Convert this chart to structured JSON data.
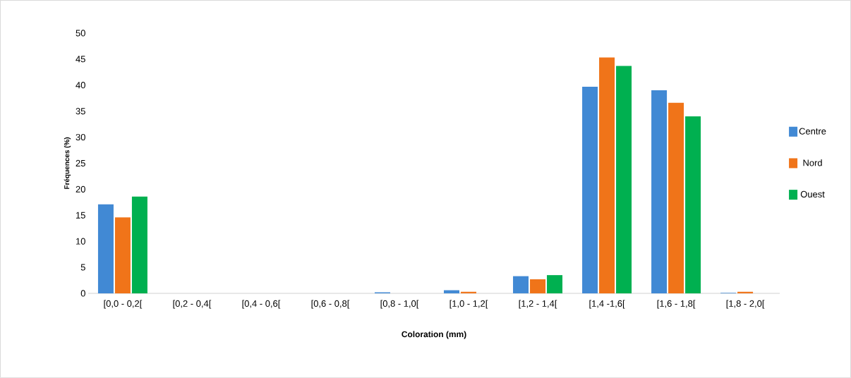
{
  "chart_data": {
    "type": "bar",
    "xlabel": "Coloration (mm)",
    "ylabel": "Fréquences (%)",
    "categories": [
      "[0,0 - 0,2[",
      "[0,2 - 0,4[",
      "[0,4 - 0,6[",
      "[0,6 - 0,8[",
      "[0,8 - 1,0[",
      "[1,0 - 1,2[",
      "[1,2 - 1,4[",
      "[1,4 -1,6[",
      "[1,6 - 1,8[",
      "[1,8 - 2,0["
    ],
    "series": [
      {
        "name": "Centre",
        "color": "#4189d4",
        "values": [
          17.1,
          0,
          0,
          0,
          0.2,
          0.6,
          3.3,
          39.7,
          39.0,
          0.1
        ]
      },
      {
        "name": "Nord",
        "color": "#f07419",
        "values": [
          14.6,
          0,
          0,
          0,
          0,
          0.3,
          2.7,
          45.3,
          36.6,
          0.3
        ]
      },
      {
        "name": "Ouest",
        "color": "#00b050",
        "values": [
          18.6,
          0,
          0,
          0,
          0,
          0,
          3.5,
          43.7,
          34.0,
          0
        ]
      }
    ],
    "ylim": [
      0,
      50
    ],
    "yticks": [
      0,
      5,
      10,
      15,
      20,
      25,
      30,
      35,
      40,
      45,
      50
    ],
    "legend": "right"
  }
}
